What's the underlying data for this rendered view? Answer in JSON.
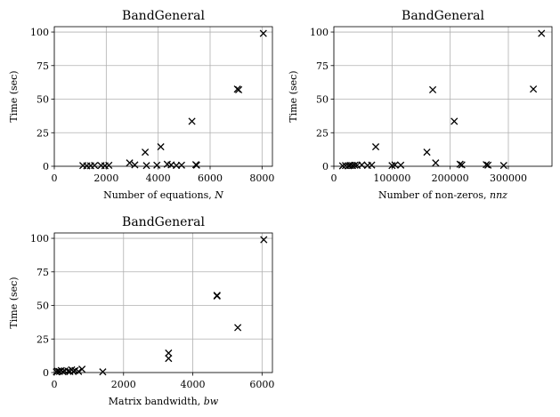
{
  "chart_data": [
    {
      "type": "scatter",
      "title": "BandGeneral",
      "xlabel": "Number of equations, N",
      "ylabel": "Time (sec)",
      "xlim": [
        0,
        8400
      ],
      "ylim": [
        0,
        104
      ],
      "xticks": [
        0,
        2000,
        4000,
        6000,
        8000
      ],
      "yticks": [
        0,
        25,
        50,
        75,
        100
      ],
      "grid": true,
      "marker": "x",
      "series": [
        {
          "x": [
            1100,
            1250,
            1400,
            1550,
            1800,
            1950,
            2100,
            2900,
            3100,
            3500,
            3550,
            3950,
            4100,
            4350,
            4500,
            4700,
            4900,
            5300,
            5450,
            5480,
            7050,
            7100,
            8050
          ],
          "y": [
            0.5,
            0.3,
            0.4,
            0.6,
            0.5,
            0.4,
            0.7,
            2.5,
            1.0,
            10.5,
            0.5,
            0.8,
            14.5,
            1.5,
            1.0,
            0.6,
            0.8,
            33.5,
            1.2,
            0.8,
            57.5,
            57.0,
            99.0
          ]
        }
      ]
    },
    {
      "type": "scatter",
      "title": "BandGeneral",
      "xlabel": "Number of non-zeros, nnz",
      "ylabel": "Time (sec)",
      "xlim": [
        0,
        375000
      ],
      "ylim": [
        0,
        104
      ],
      "xticks": [
        0,
        100000,
        200000,
        300000
      ],
      "yticks": [
        0,
        25,
        50,
        75,
        100
      ],
      "grid": true,
      "marker": "x",
      "series": [
        {
          "x": [
            15000,
            20000,
            25000,
            28000,
            32000,
            36000,
            40000,
            48000,
            58000,
            65000,
            72000,
            100000,
            105000,
            115000,
            160000,
            170000,
            175000,
            207000,
            217000,
            220000,
            262000,
            265000,
            292000,
            343000,
            357000
          ],
          "y": [
            0.3,
            0.5,
            0.4,
            0.6,
            0.5,
            0.8,
            0.7,
            1.0,
            0.6,
            0.9,
            14.5,
            0.5,
            1.0,
            0.8,
            10.5,
            57.0,
            2.5,
            33.5,
            1.5,
            1.0,
            1.2,
            0.8,
            0.6,
            57.5,
            99.0
          ]
        }
      ]
    },
    {
      "type": "scatter",
      "title": "BandGeneral",
      "xlabel": "Matrix bandwidth, bw",
      "ylabel": "Time (sec)",
      "xlim": [
        0,
        6300
      ],
      "ylim": [
        0,
        104
      ],
      "xticks": [
        0,
        2000,
        4000,
        6000
      ],
      "yticks": [
        0,
        25,
        50,
        75,
        100
      ],
      "grid": true,
      "marker": "x",
      "series": [
        {
          "x": [
            60,
            100,
            150,
            200,
            250,
            300,
            400,
            450,
            500,
            550,
            600,
            700,
            800,
            1400,
            3300,
            3300,
            4700,
            4700,
            5300,
            6050
          ],
          "y": [
            0.5,
            1.0,
            0.8,
            1.5,
            0.6,
            1.2,
            1.0,
            0.7,
            2.0,
            0.9,
            1.5,
            0.8,
            2.5,
            0.5,
            14.5,
            10.5,
            57.5,
            57.0,
            33.5,
            99.0
          ]
        }
      ]
    }
  ]
}
